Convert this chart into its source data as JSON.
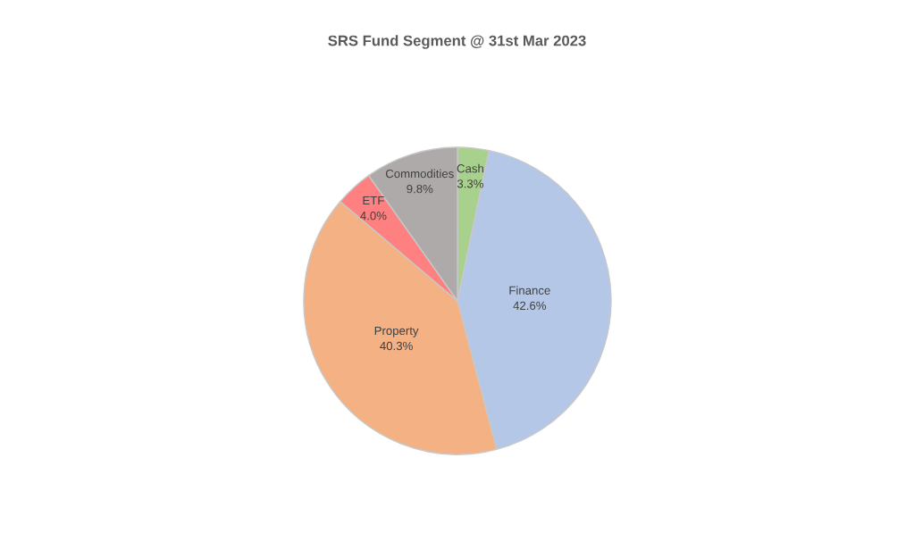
{
  "chart_data": {
    "type": "pie",
    "title": "SRS Fund Segment @ 31st Mar 2023",
    "categories": [
      "Cash",
      "Finance",
      "Property",
      "ETF",
      "Commodities"
    ],
    "values": [
      3.3,
      42.6,
      40.3,
      4.0,
      9.8
    ],
    "value_labels": [
      "3.3%",
      "42.6%",
      "40.3%",
      "4.0%",
      "9.8%"
    ],
    "colors": [
      "#a9d18e",
      "#b4c7e7",
      "#f4b183",
      "#ff8080",
      "#aeaaaa"
    ]
  }
}
